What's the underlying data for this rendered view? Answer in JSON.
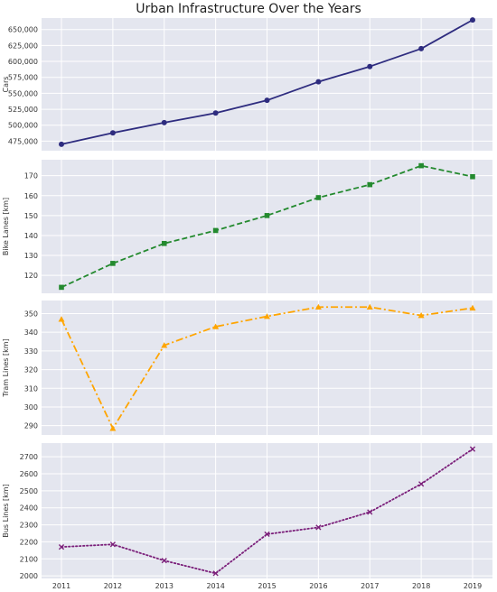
{
  "title": "Urban Infrastructure Over the Years",
  "chart_data": {
    "type": "line",
    "title": "Urban Infrastructure Over the Years",
    "x": [
      2011,
      2012,
      2013,
      2014,
      2015,
      2016,
      2017,
      2018,
      2019
    ],
    "panels": [
      {
        "ylabel": "Cars",
        "color": "#2e2c7f",
        "linestyle": "solid",
        "marker": "circle",
        "ylim": [
          460000,
          668000
        ],
        "yticks": [
          475000,
          500000,
          525000,
          550000,
          575000,
          600000,
          625000,
          650000
        ],
        "ytick_labels": [
          "475,000",
          "500,000",
          "525,000",
          "550,000",
          "575,000",
          "600,000",
          "625,000",
          "650,000"
        ],
        "values": [
          470000,
          488000,
          504000,
          519000,
          539000,
          568000,
          592000,
          620000,
          665000
        ]
      },
      {
        "ylabel": "Bike Lanes [km]",
        "color": "#248a2f",
        "linestyle": "dashed",
        "marker": "square",
        "ylim": [
          111,
          178
        ],
        "yticks": [
          120,
          130,
          140,
          150,
          160,
          170
        ],
        "ytick_labels": [
          "120",
          "130",
          "140",
          "150",
          "160",
          "170"
        ],
        "values": [
          114,
          126,
          136,
          142.5,
          150,
          159,
          165.5,
          175,
          169.5
        ]
      },
      {
        "ylabel": "Tram Lines [km]",
        "color": "#ffa500",
        "linestyle": "dashdot",
        "marker": "triangle",
        "ylim": [
          285,
          357
        ],
        "yticks": [
          290,
          300,
          310,
          320,
          330,
          340,
          350
        ],
        "ytick_labels": [
          "290",
          "300",
          "310",
          "320",
          "330",
          "340",
          "350"
        ],
        "values": [
          347,
          288.5,
          333,
          343,
          348.5,
          353.5,
          353.5,
          349,
          353
        ]
      },
      {
        "ylabel": "Bus Lines [km]",
        "color": "#7b1f7a",
        "linestyle": "dotted",
        "marker": "x",
        "ylim": [
          1985,
          2780
        ],
        "yticks": [
          2000,
          2100,
          2200,
          2300,
          2400,
          2500,
          2600,
          2700
        ],
        "ytick_labels": [
          "2000",
          "2100",
          "2200",
          "2300",
          "2400",
          "2500",
          "2600",
          "2700"
        ],
        "values": [
          2170,
          2185,
          2090,
          2015,
          2245,
          2285,
          2375,
          2540,
          2745
        ]
      }
    ],
    "grid": true
  }
}
